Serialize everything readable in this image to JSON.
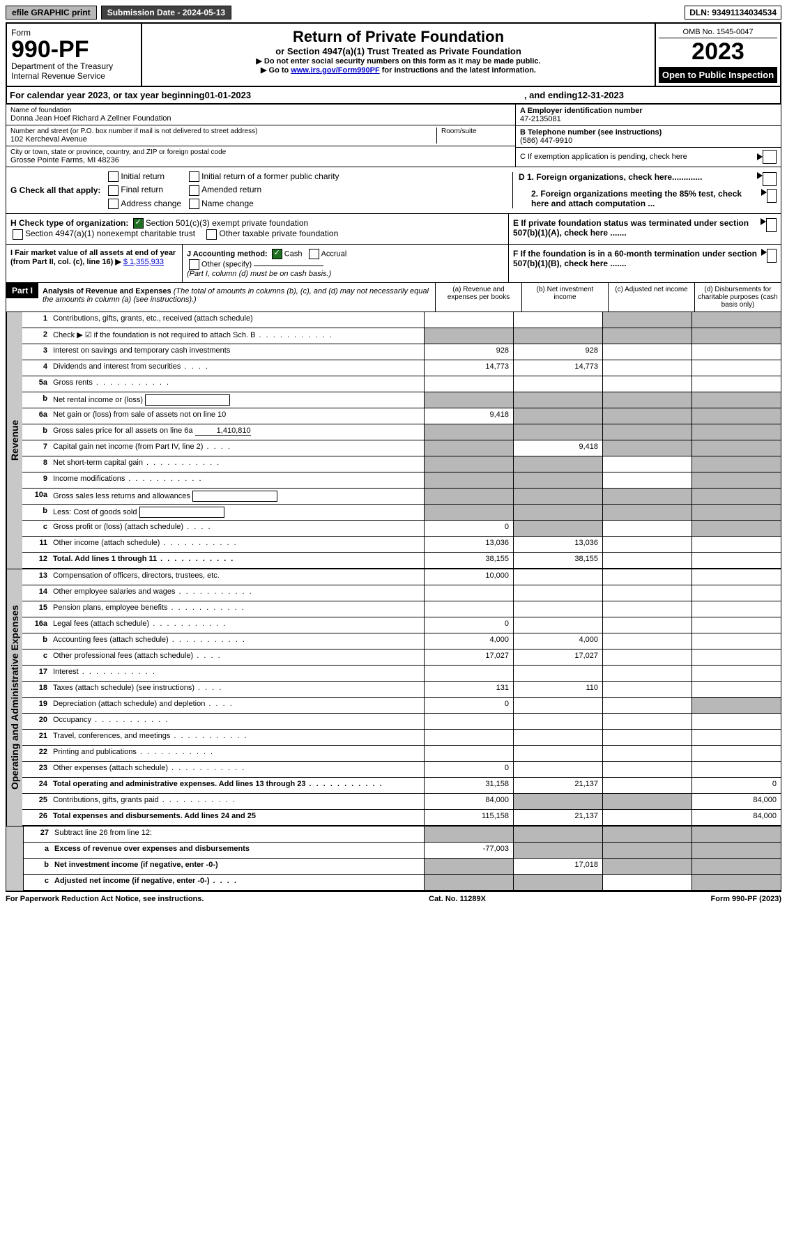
{
  "topbar": {
    "efile": "efile GRAPHIC print",
    "subdate_label": "Submission Date - ",
    "subdate": "2024-05-13",
    "dln_label": "DLN: ",
    "dln": "93491134034534"
  },
  "header": {
    "form_word": "Form",
    "form_num": "990-PF",
    "dept": "Department of the Treasury",
    "irs": "Internal Revenue Service",
    "title": "Return of Private Foundation",
    "subtitle": "or Section 4947(a)(1) Trust Treated as Private Foundation",
    "note1": "▶ Do not enter social security numbers on this form as it may be made public.",
    "note2_pre": "▶ Go to ",
    "note2_link": "www.irs.gov/Form990PF",
    "note2_post": " for instructions and the latest information.",
    "omb": "OMB No. 1545-0047",
    "year": "2023",
    "open": "Open to Public Inspection"
  },
  "period": {
    "pre": "For calendar year 2023, or tax year beginning ",
    "begin": "01-01-2023",
    "mid": ", and ending ",
    "end": "12-31-2023"
  },
  "info": {
    "name_label": "Name of foundation",
    "name": "Donna Jean Hoef Richard A Zellner Foundation",
    "addr_label": "Number and street (or P.O. box number if mail is not delivered to street address)",
    "room_label": "Room/suite",
    "addr": "102 Kercheval Avenue",
    "city_label": "City or town, state or province, country, and ZIP or foreign postal code",
    "city": "Grosse Pointe Farms, MI  48236",
    "ein_label": "A Employer identification number",
    "ein": "47-2135081",
    "tel_label": "B Telephone number (see instructions)",
    "tel": "(586) 447-9910",
    "c": "C  If exemption application is pending, check here",
    "d1": "D 1. Foreign organizations, check here.............",
    "d2": "2. Foreign organizations meeting the 85% test, check here and attach computation ...",
    "e": "E  If private foundation status was terminated under section 507(b)(1)(A), check here .......",
    "f": "F  If the foundation is in a 60-month termination under section 507(b)(1)(B), check here ......."
  },
  "g": {
    "label": "G Check all that apply:",
    "opts": [
      "Initial return",
      "Final return",
      "Address change",
      "Initial return of a former public charity",
      "Amended return",
      "Name change"
    ]
  },
  "h": {
    "label": "H Check type of organization:",
    "opt1": "Section 501(c)(3) exempt private foundation",
    "opt2": "Section 4947(a)(1) nonexempt charitable trust",
    "opt3": "Other taxable private foundation"
  },
  "i": {
    "label": "I Fair market value of all assets at end of year (from Part II, col. (c), line 16) ▶",
    "amt": "$  1,355,933"
  },
  "j": {
    "label": "J Accounting method:",
    "cash": "Cash",
    "accrual": "Accrual",
    "other": "Other (specify)",
    "note": "(Part I, column (d) must be on cash basis.)"
  },
  "part1": {
    "label": "Part I",
    "title": "Analysis of Revenue and Expenses",
    "note": "(The total of amounts in columns (b), (c), and (d) may not necessarily equal the amounts in column (a) (see instructions).)",
    "cols": [
      "(a) Revenue and expenses per books",
      "(b) Net investment income",
      "(c) Adjusted net income",
      "(d) Disbursements for charitable purposes (cash basis only)"
    ]
  },
  "side": {
    "rev": "Revenue",
    "exp": "Operating and Administrative Expenses"
  },
  "rows": [
    {
      "n": "1",
      "d": "Contributions, gifts, grants, etc., received (attach schedule)",
      "a": "",
      "b": "",
      "c": "s",
      "ds": "s"
    },
    {
      "n": "2",
      "d": "Check ▶ ☑ if the foundation is not required to attach Sch. B",
      "dots": true,
      "a": "s",
      "b": "s",
      "c": "s",
      "ds": "s"
    },
    {
      "n": "3",
      "d": "Interest on savings and temporary cash investments",
      "a": "928",
      "b": "928"
    },
    {
      "n": "4",
      "d": "Dividends and interest from securities",
      "dots": "s",
      "a": "14,773",
      "b": "14,773"
    },
    {
      "n": "5a",
      "d": "Gross rents",
      "dots": true
    },
    {
      "n": "b",
      "d": "Net rental income or (loss)",
      "box": true,
      "a": "s",
      "b": "s",
      "c": "s",
      "ds": "s"
    },
    {
      "n": "6a",
      "d": "Net gain or (loss) from sale of assets not on line 10",
      "a": "9,418",
      "b": "s",
      "c": "s",
      "ds": "s"
    },
    {
      "n": "b",
      "d": "Gross sales price for all assets on line 6a",
      "uline": "1,410,810",
      "a": "s",
      "b": "s",
      "c": "s",
      "ds": "s"
    },
    {
      "n": "7",
      "d": "Capital gain net income (from Part IV, line 2)",
      "dots": "s",
      "a": "s",
      "b": "9,418",
      "c": "s",
      "ds": "s"
    },
    {
      "n": "8",
      "d": "Net short-term capital gain",
      "dots": true,
      "a": "s",
      "b": "s",
      "ds": "s"
    },
    {
      "n": "9",
      "d": "Income modifications",
      "dots": true,
      "a": "s",
      "b": "s",
      "ds": "s"
    },
    {
      "n": "10a",
      "d": "Gross sales less returns and allowances",
      "box": true,
      "a": "s",
      "b": "s",
      "c": "s",
      "ds": "s"
    },
    {
      "n": "b",
      "d": "Less: Cost of goods sold",
      "dots": "s",
      "box": true,
      "a": "s",
      "b": "s",
      "c": "s",
      "ds": "s"
    },
    {
      "n": "c",
      "d": "Gross profit or (loss) (attach schedule)",
      "dots": "s",
      "a": "0",
      "b": "s",
      "ds": "s"
    },
    {
      "n": "11",
      "d": "Other income (attach schedule)",
      "dots": true,
      "a": "13,036",
      "b": "13,036"
    },
    {
      "n": "12",
      "d": "Total. Add lines 1 through 11",
      "bold": true,
      "dots": true,
      "a": "38,155",
      "b": "38,155"
    }
  ],
  "exp_rows": [
    {
      "n": "13",
      "d": "Compensation of officers, directors, trustees, etc.",
      "a": "10,000"
    },
    {
      "n": "14",
      "d": "Other employee salaries and wages",
      "dots": true
    },
    {
      "n": "15",
      "d": "Pension plans, employee benefits",
      "dots": true
    },
    {
      "n": "16a",
      "d": "Legal fees (attach schedule)",
      "dots": true,
      "a": "0"
    },
    {
      "n": "b",
      "d": "Accounting fees (attach schedule)",
      "dots": true,
      "a": "4,000",
      "b": "4,000"
    },
    {
      "n": "c",
      "d": "Other professional fees (attach schedule)",
      "dots": "s",
      "a": "17,027",
      "b": "17,027"
    },
    {
      "n": "17",
      "d": "Interest",
      "dots": true
    },
    {
      "n": "18",
      "d": "Taxes (attach schedule) (see instructions)",
      "dots": "s",
      "a": "131",
      "b": "110"
    },
    {
      "n": "19",
      "d": "Depreciation (attach schedule) and depletion",
      "dots": "s",
      "a": "0",
      "ds": "s"
    },
    {
      "n": "20",
      "d": "Occupancy",
      "dots": true
    },
    {
      "n": "21",
      "d": "Travel, conferences, and meetings",
      "dots": true
    },
    {
      "n": "22",
      "d": "Printing and publications",
      "dots": true
    },
    {
      "n": "23",
      "d": "Other expenses (attach schedule)",
      "dots": true,
      "a": "0"
    },
    {
      "n": "24",
      "d": "Total operating and administrative expenses. Add lines 13 through 23",
      "bold": true,
      "dots": true,
      "a": "31,158",
      "b": "21,137",
      "dv": "0"
    },
    {
      "n": "25",
      "d": "Contributions, gifts, grants paid",
      "dots": true,
      "a": "84,000",
      "b": "s",
      "c": "s",
      "dv": "84,000"
    },
    {
      "n": "26",
      "d": "Total expenses and disbursements. Add lines 24 and 25",
      "bold": true,
      "a": "115,158",
      "b": "21,137",
      "dv": "84,000"
    }
  ],
  "bottom_rows": [
    {
      "n": "27",
      "d": "Subtract line 26 from line 12:",
      "a": "s",
      "b": "s",
      "c": "s",
      "ds": "s"
    },
    {
      "n": "a",
      "d": "Excess of revenue over expenses and disbursements",
      "bold": true,
      "a": "-77,003",
      "b": "s",
      "c": "s",
      "ds": "s"
    },
    {
      "n": "b",
      "d": "Net investment income (if negative, enter -0-)",
      "bold": true,
      "a": "s",
      "b": "17,018",
      "c": "s",
      "ds": "s"
    },
    {
      "n": "c",
      "d": "Adjusted net income (if negative, enter -0-)",
      "bold": true,
      "dots": "s",
      "a": "s",
      "b": "s",
      "ds": "s"
    }
  ],
  "footer": {
    "left": "For Paperwork Reduction Act Notice, see instructions.",
    "mid": "Cat. No. 11289X",
    "right": "Form 990-PF (2023)"
  }
}
